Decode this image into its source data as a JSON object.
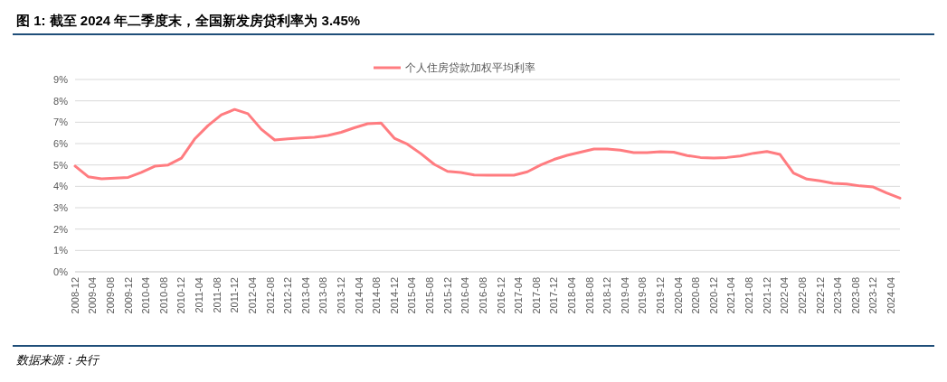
{
  "chart_data": {
    "type": "line",
    "title": "图 1: 截至 2024 年二季度末，全国新发房贷利率为 3.45%",
    "annotations": [
      "数据来源：央行"
    ],
    "x": [
      "2008-12",
      "2009-03",
      "2009-06",
      "2009-09",
      "2009-12",
      "2010-03",
      "2010-06",
      "2010-09",
      "2010-12",
      "2011-03",
      "2011-06",
      "2011-09",
      "2011-12",
      "2012-03",
      "2012-06",
      "2012-09",
      "2012-12",
      "2013-03",
      "2013-06",
      "2013-09",
      "2013-12",
      "2014-03",
      "2014-06",
      "2014-09",
      "2014-12",
      "2015-03",
      "2015-06",
      "2015-09",
      "2015-12",
      "2016-03",
      "2016-06",
      "2016-09",
      "2016-12",
      "2017-03",
      "2017-06",
      "2017-09",
      "2017-12",
      "2018-03",
      "2018-06",
      "2018-09",
      "2018-12",
      "2019-03",
      "2019-06",
      "2019-09",
      "2019-12",
      "2020-03",
      "2020-06",
      "2020-09",
      "2020-12",
      "2021-03",
      "2021-06",
      "2021-09",
      "2021-12",
      "2022-03",
      "2022-06",
      "2022-09",
      "2022-12",
      "2023-03",
      "2023-06",
      "2023-09",
      "2023-12",
      "2024-03",
      "2024-06"
    ],
    "series": [
      {
        "name": "个人住房贷款加权平均利率",
        "color": "#ff7c80",
        "values": [
          4.95,
          4.45,
          4.35,
          4.38,
          4.42,
          4.65,
          4.94,
          5.0,
          5.32,
          6.21,
          6.84,
          7.35,
          7.6,
          7.4,
          6.67,
          6.17,
          6.22,
          6.26,
          6.3,
          6.38,
          6.53,
          6.74,
          6.93,
          6.96,
          6.25,
          5.97,
          5.53,
          5.03,
          4.7,
          4.65,
          4.53,
          4.52,
          4.52,
          4.52,
          4.68,
          5.0,
          5.26,
          5.45,
          5.6,
          5.75,
          5.75,
          5.69,
          5.58,
          5.58,
          5.62,
          5.6,
          5.44,
          5.35,
          5.32,
          5.35,
          5.42,
          5.55,
          5.63,
          5.49,
          4.62,
          4.34,
          4.26,
          4.14,
          4.11,
          4.02,
          3.97,
          3.69,
          3.45
        ]
      }
    ],
    "xlim": [
      "2008-12",
      "2024-06"
    ],
    "xticks": [
      "2008-12",
      "2009-04",
      "2009-08",
      "2009-12",
      "2010-04",
      "2010-08",
      "2010-12",
      "2011-04",
      "2011-08",
      "2011-12",
      "2012-04",
      "2012-08",
      "2012-12",
      "2013-04",
      "2013-08",
      "2013-12",
      "2014-04",
      "2014-08",
      "2014-12",
      "2015-04",
      "2015-08",
      "2015-12",
      "2016-04",
      "2016-08",
      "2016-12",
      "2017-04",
      "2017-08",
      "2017-12",
      "2018-04",
      "2018-08",
      "2018-12",
      "2019-04",
      "2019-08",
      "2019-12",
      "2020-04",
      "2020-08",
      "2020-12",
      "2021-04",
      "2021-08",
      "2021-12",
      "2022-04",
      "2022-08",
      "2022-12",
      "2023-04",
      "2023-08",
      "2023-12",
      "2024-04"
    ],
    "ylim": [
      0,
      9
    ],
    "yticks": [
      {
        "value": 0,
        "label": "0%"
      },
      {
        "value": 1,
        "label": "1%"
      },
      {
        "value": 2,
        "label": "2%"
      },
      {
        "value": 3,
        "label": "3%"
      },
      {
        "value": 4,
        "label": "4%"
      },
      {
        "value": 5,
        "label": "5%"
      },
      {
        "value": 6,
        "label": "6%"
      },
      {
        "value": 7,
        "label": "7%"
      },
      {
        "value": 8,
        "label": "8%"
      },
      {
        "value": 9,
        "label": "9%"
      }
    ],
    "grid": "y",
    "legend": "top",
    "marker": "none",
    "line_style": "solid"
  }
}
